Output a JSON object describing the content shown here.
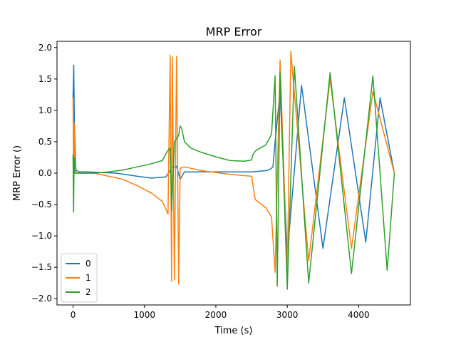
{
  "chart_data": {
    "type": "line",
    "title": "MRP Error",
    "xlabel": "Time (s)",
    "ylabel": "MRP Error ()",
    "xlim": [
      -225,
      4725
    ],
    "ylim": [
      -2.1,
      2.1
    ],
    "xticks": [
      0,
      1000,
      2000,
      3000,
      4000
    ],
    "yticks": [
      -2.0,
      -1.5,
      -1.0,
      -0.5,
      0.0,
      0.5,
      1.0,
      1.5,
      2.0
    ],
    "tick_labels_x": [
      "0",
      "1000",
      "2000",
      "3000",
      "4000"
    ],
    "tick_labels_y": [
      "−2.0",
      "−1.5",
      "−1.0",
      "−0.5",
      "0.0",
      "0.5",
      "1.0",
      "1.5",
      "2.0"
    ],
    "grid": false,
    "legend_position": "lower-left",
    "series": [
      {
        "name": "0",
        "color": "#1f77b4",
        "x": [
          0,
          10,
          20,
          40,
          80,
          200,
          400,
          600,
          900,
          1100,
          1300,
          1390,
          1450,
          1500,
          1560,
          1800,
          2200,
          2500,
          2600,
          2700,
          2760,
          2800,
          2830,
          2900,
          3000,
          3200,
          3500,
          3800,
          4100,
          4300,
          4500
        ],
        "y": [
          1.2,
          1.72,
          0.7,
          0.05,
          0.02,
          0.02,
          0.01,
          0.0,
          -0.05,
          -0.08,
          -0.06,
          0.09,
          0.11,
          -0.1,
          0.02,
          0.02,
          0.02,
          0.02,
          0.03,
          0.04,
          0.06,
          0.1,
          0.5,
          1.3,
          -1.3,
          1.4,
          -1.2,
          1.2,
          -1.1,
          1.2,
          0.0
        ]
      },
      {
        "name": "1",
        "color": "#ff7f0e",
        "x": [
          0,
          8,
          15,
          25,
          40,
          100,
          300,
          500,
          700,
          900,
          1100,
          1250,
          1330,
          1360,
          1380,
          1390,
          1420,
          1450,
          1480,
          1500,
          1560,
          1800,
          2200,
          2500,
          2550,
          2700,
          2780,
          2830,
          2900,
          3000,
          3050,
          3300,
          3600,
          3900,
          4200,
          4500
        ],
        "y": [
          1.2,
          -0.1,
          0.8,
          0.22,
          0.0,
          0.0,
          0.0,
          -0.05,
          -0.1,
          -0.2,
          -0.32,
          -0.45,
          -0.65,
          1.88,
          -1.72,
          1.85,
          -1.7,
          1.86,
          -1.77,
          0.08,
          0.1,
          0.04,
          -0.02,
          -0.05,
          -0.42,
          -0.55,
          -0.7,
          -1.58,
          1.8,
          -1.6,
          1.94,
          -1.4,
          1.5,
          -1.2,
          1.3,
          0.0
        ]
      },
      {
        "name": "2",
        "color": "#2ca02c",
        "x": [
          0,
          8,
          15,
          25,
          40,
          100,
          300,
          500,
          700,
          900,
          1100,
          1250,
          1320,
          1360,
          1380,
          1420,
          1450,
          1480,
          1500,
          1520,
          1560,
          1650,
          1800,
          2000,
          2200,
          2400,
          2500,
          2520,
          2560,
          2700,
          2780,
          2830,
          2860,
          2900,
          3000,
          3100,
          3300,
          3600,
          3900,
          4200,
          4400,
          4500
        ],
        "y": [
          0.3,
          -0.62,
          0.25,
          0.0,
          0.0,
          0.0,
          0.0,
          0.02,
          0.05,
          0.1,
          0.15,
          0.2,
          0.35,
          0.4,
          -0.6,
          0.5,
          0.55,
          0.6,
          0.75,
          0.72,
          0.5,
          0.4,
          0.33,
          0.26,
          0.2,
          0.19,
          0.21,
          0.3,
          0.36,
          0.45,
          0.62,
          1.55,
          -1.8,
          1.6,
          -1.85,
          1.7,
          -1.75,
          1.6,
          -1.6,
          1.55,
          -1.55,
          0.0
        ]
      }
    ]
  }
}
